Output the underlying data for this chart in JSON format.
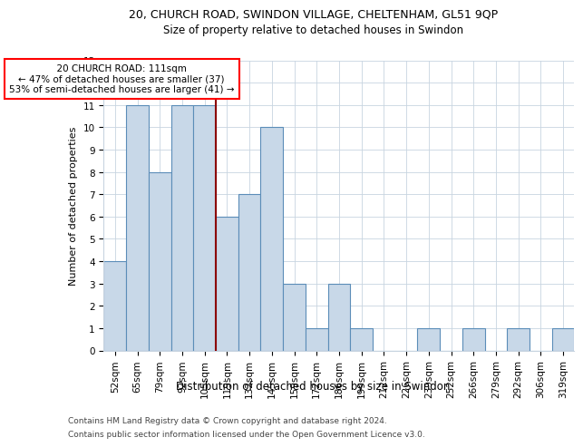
{
  "title1": "20, CHURCH ROAD, SWINDON VILLAGE, CHELTENHAM, GL51 9QP",
  "title2": "Size of property relative to detached houses in Swindon",
  "xlabel": "Distribution of detached houses by size in Swindon",
  "ylabel": "Number of detached properties",
  "categories": [
    "52sqm",
    "65sqm",
    "79sqm",
    "92sqm",
    "105sqm",
    "119sqm",
    "132sqm",
    "145sqm",
    "159sqm",
    "172sqm",
    "186sqm",
    "199sqm",
    "212sqm",
    "226sqm",
    "239sqm",
    "252sqm",
    "266sqm",
    "279sqm",
    "292sqm",
    "306sqm",
    "319sqm"
  ],
  "values": [
    4,
    11,
    8,
    11,
    11,
    6,
    7,
    10,
    3,
    1,
    3,
    1,
    0,
    0,
    1,
    0,
    1,
    0,
    1,
    0,
    1
  ],
  "bar_color": "#c8d8e8",
  "bar_edge_color": "#5b8db8",
  "red_line_x": 4.5,
  "annotation_text": "  20 CHURCH ROAD: 111sqm  \n← 47% of detached houses are smaller (37)\n53% of semi-detached houses are larger (41) →",
  "ylim": [
    0,
    13
  ],
  "yticks": [
    0,
    1,
    2,
    3,
    4,
    5,
    6,
    7,
    8,
    9,
    10,
    11,
    12,
    13
  ],
  "footer1": "Contains HM Land Registry data © Crown copyright and database right 2024.",
  "footer2": "Contains public sector information licensed under the Open Government Licence v3.0.",
  "background_color": "#ffffff",
  "grid_color": "#c8d4e0",
  "title1_fontsize": 9,
  "title2_fontsize": 8.5,
  "ylabel_fontsize": 8,
  "xlabel_fontsize": 8.5,
  "tick_fontsize": 7.5,
  "annotation_fontsize": 7.5,
  "footer_fontsize": 6.5
}
